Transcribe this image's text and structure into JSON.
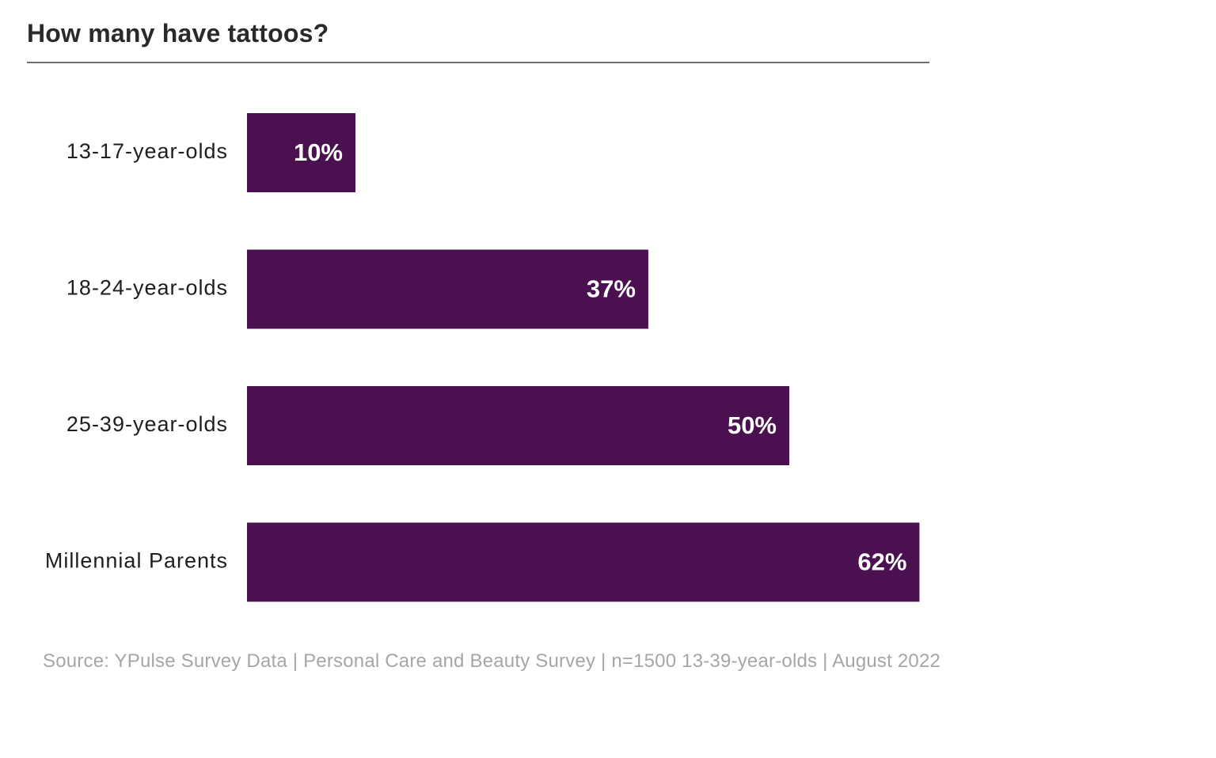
{
  "chart_data": {
    "type": "bar",
    "orientation": "horizontal",
    "title": "How many have tattoos?",
    "categories": [
      "13-17-year-olds",
      "18-24-year-olds",
      "25-39-year-olds",
      "Millennial Parents"
    ],
    "values": [
      10,
      37,
      50,
      62
    ],
    "value_labels": [
      "10%",
      "37%",
      "50%",
      "62%"
    ],
    "unit": "%",
    "xlim": [
      0,
      100
    ],
    "xlabel": "",
    "ylabel": "",
    "grid": false,
    "legend": "none",
    "bar_color": "#4a1050",
    "label_color": "#ffffff",
    "source": "Source: YPulse Survey Data | Personal Care and Beauty Survey | n=1500 13-39-year-olds | August 2022"
  }
}
